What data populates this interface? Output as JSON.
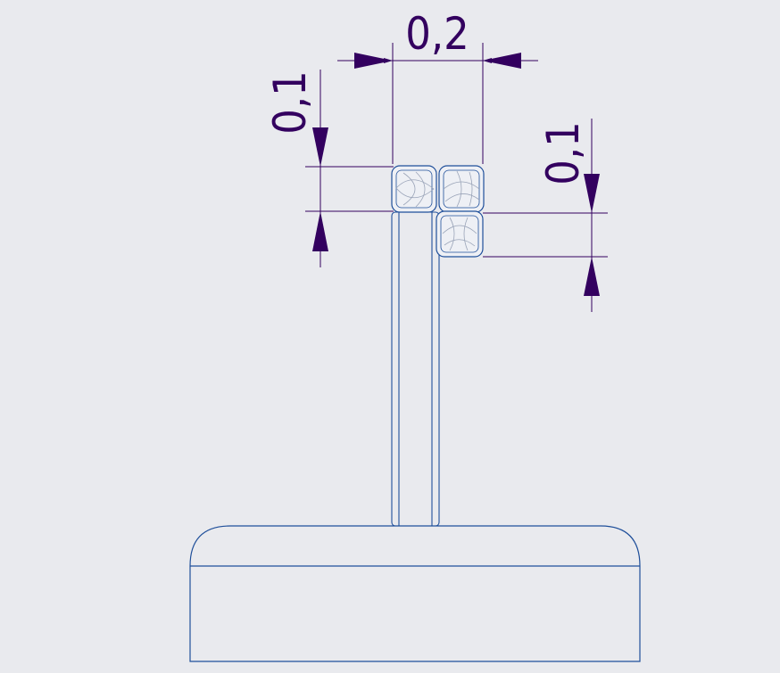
{
  "dimensions": {
    "width_top": "0,2",
    "height_left": "0,1",
    "height_right": "0,1"
  },
  "colors": {
    "background": "#e9eaee",
    "dimension": "#33005f",
    "geometry": "#1f4f9a",
    "shading": "#9aa4b8"
  }
}
